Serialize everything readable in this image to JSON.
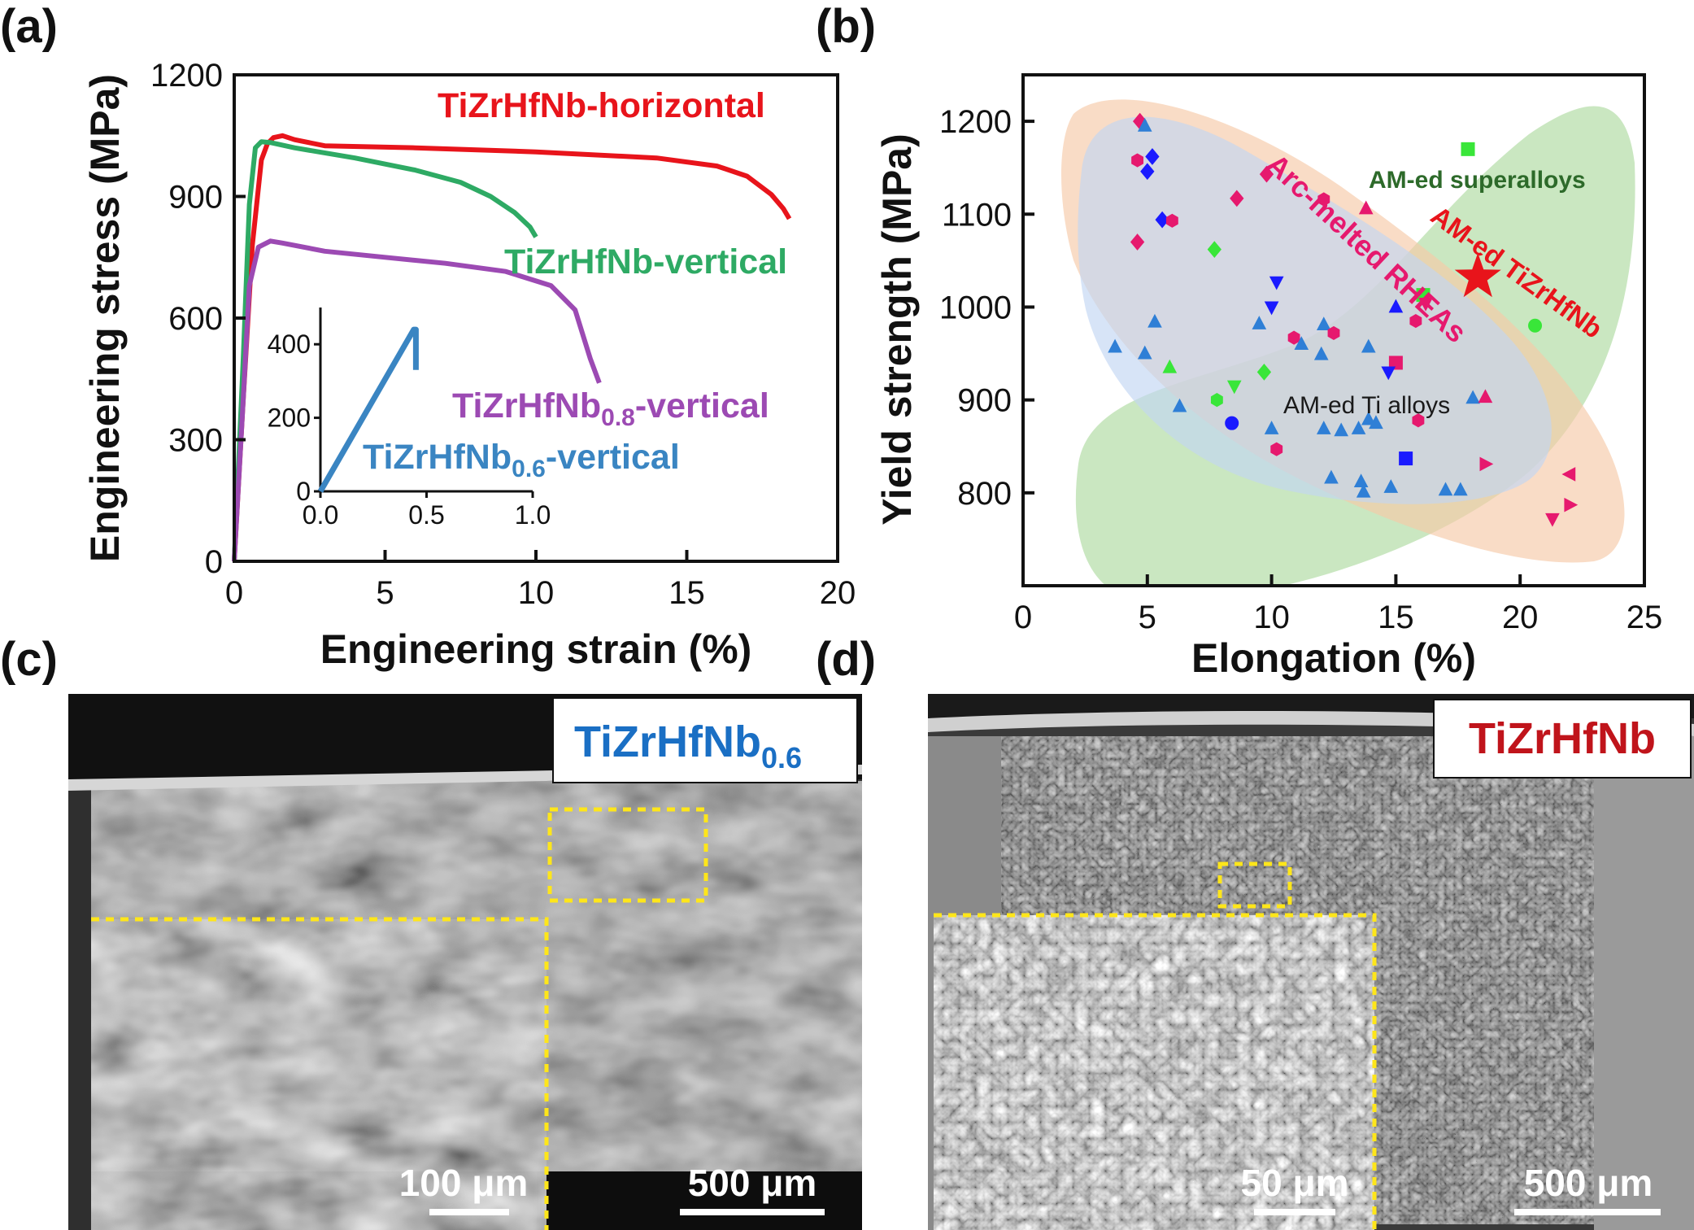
{
  "panels": {
    "a": {
      "label": "(a)"
    },
    "b": {
      "label": "(b)"
    },
    "c": {
      "label": "(c)"
    },
    "d": {
      "label": "(d)"
    }
  },
  "chart_data": [
    {
      "panel": "a",
      "type": "line",
      "xlabel": "Engineering strain (%)",
      "ylabel": "Engineering stress (MPa)",
      "xlim": [
        0,
        20
      ],
      "ylim": [
        0,
        1200
      ],
      "xticks": [
        0,
        5,
        10,
        15,
        20
      ],
      "yticks": [
        0,
        300,
        600,
        900,
        1200
      ],
      "grid": false,
      "series": [
        {
          "name": "TiZrHfNb-horizontal",
          "color": "#e8141b",
          "x": [
            0,
            0.3,
            0.6,
            0.9,
            1.1,
            1.3,
            1.6,
            2.0,
            3.0,
            6.0,
            10.0,
            14.0,
            16.0,
            17.0,
            17.8,
            18.2,
            18.4
          ],
          "y": [
            0,
            400,
            780,
            990,
            1030,
            1045,
            1050,
            1040,
            1025,
            1020,
            1010,
            995,
            975,
            950,
            905,
            870,
            845
          ]
        },
        {
          "name": "TiZrHfNb-vertical",
          "color": "#2eaa64",
          "x": [
            0,
            0.3,
            0.5,
            0.7,
            0.9,
            1.2,
            2.0,
            4.0,
            6.0,
            7.5,
            8.5,
            9.3,
            9.8,
            10.0
          ],
          "y": [
            0,
            500,
            880,
            1020,
            1035,
            1033,
            1020,
            995,
            965,
            935,
            900,
            860,
            825,
            800
          ]
        },
        {
          "name": "TiZrHfNb0.8-vertical",
          "color": "#9c4ab3",
          "x": [
            0,
            0.3,
            0.5,
            0.8,
            1.2,
            1.6,
            3.0,
            5.0,
            7.0,
            9.0,
            10.5,
            11.3,
            11.8,
            12.1
          ],
          "y": [
            0,
            400,
            680,
            775,
            790,
            785,
            765,
            750,
            735,
            715,
            680,
            620,
            500,
            440
          ]
        }
      ],
      "annotations": [
        {
          "text": "TiZrHfNb-horizontal",
          "color": "#e8141b"
        },
        {
          "text": "TiZrHfNb-vertical",
          "color": "#2eaa64"
        },
        {
          "base": "TiZrHfNb",
          "sub": "0.8",
          "suffix": "-vertical",
          "color": "#9c4ab3"
        },
        {
          "base": "TiZrHfNb",
          "sub": "0.6",
          "suffix": "-vertical",
          "color": "#3a85c2"
        }
      ],
      "inset": {
        "xlim": [
          0,
          1.0
        ],
        "ylim": [
          0,
          500
        ],
        "xticks": [
          "0.0",
          "0.5",
          "1.0"
        ],
        "yticks": [
          "0",
          "200",
          "400"
        ],
        "series": [
          {
            "name": "TiZrHfNb0.6-vertical",
            "color": "#3a85c2",
            "x": [
              0,
              0.44,
              0.45,
              0.45
            ],
            "y": [
              0,
              440,
              440,
              330
            ]
          }
        ]
      }
    },
    {
      "panel": "b",
      "type": "scatter",
      "xlabel": "Elongation (%)",
      "ylabel": "Yield strength (MPa)",
      "xlim": [
        0,
        25
      ],
      "ylim": [
        700,
        1250
      ],
      "xticks": [
        0,
        5,
        10,
        15,
        20,
        25
      ],
      "yticks": [
        800,
        900,
        1000,
        1100,
        1200
      ],
      "grid": false,
      "region_labels": [
        {
          "text": "AM-ed superalloys",
          "color": "#2d6a2a"
        },
        {
          "text": "Arc-melted RHEAs",
          "color": "#e6196e"
        },
        {
          "text": "AM-ed TiZrHfNb",
          "color": "#e8141b"
        },
        {
          "text": "AM-ed Ti alloys",
          "color": "#1a1a1a"
        }
      ],
      "regions": [
        {
          "name": "AM-ed superalloys",
          "color": "#9fd38e"
        },
        {
          "name": "Arc-melted RHEAs",
          "color": "#f6c9a8"
        },
        {
          "name": "AM-ed Ti alloys",
          "color": "#c2d6f2"
        }
      ],
      "highlight": {
        "name": "AM-ed TiZrHfNb",
        "x": 18.3,
        "y": 1032,
        "color": "#e8141b",
        "marker": "star"
      },
      "points": [
        {
          "x": 4.7,
          "y": 1200,
          "c": "#e6196e",
          "m": "diamond"
        },
        {
          "x": 4.9,
          "y": 1195,
          "c": "#2f7fd6",
          "m": "triangle"
        },
        {
          "x": 4.6,
          "y": 1158,
          "c": "#e6196e",
          "m": "hexagon"
        },
        {
          "x": 5.2,
          "y": 1162,
          "c": "#1a1aff",
          "m": "diamond"
        },
        {
          "x": 5.0,
          "y": 1146,
          "c": "#1a1aff",
          "m": "diamond"
        },
        {
          "x": 5.6,
          "y": 1094,
          "c": "#1a1aff",
          "m": "diamond"
        },
        {
          "x": 6.0,
          "y": 1093,
          "c": "#e6196e",
          "m": "hexagon"
        },
        {
          "x": 4.6,
          "y": 1070,
          "c": "#e6196e",
          "m": "diamond"
        },
        {
          "x": 7.7,
          "y": 1062,
          "c": "#39e639",
          "m": "diamond"
        },
        {
          "x": 8.6,
          "y": 1117,
          "c": "#e6196e",
          "m": "diamond"
        },
        {
          "x": 9.8,
          "y": 1143,
          "c": "#e6196e",
          "m": "diamond"
        },
        {
          "x": 12.1,
          "y": 1116,
          "c": "#e6196e",
          "m": "hexagon"
        },
        {
          "x": 13.8,
          "y": 1106,
          "c": "#e6196e",
          "m": "triangle"
        },
        {
          "x": 17.9,
          "y": 1170,
          "c": "#39e639",
          "m": "square"
        },
        {
          "x": 16.1,
          "y": 1013,
          "c": "#39e639",
          "m": "square"
        },
        {
          "x": 16.2,
          "y": 1004,
          "c": "#e6196e",
          "m": "triangle-down"
        },
        {
          "x": 20.6,
          "y": 980,
          "c": "#39e639",
          "m": "circle"
        },
        {
          "x": 10.2,
          "y": 1027,
          "c": "#1a1aff",
          "m": "triangle-down"
        },
        {
          "x": 10.0,
          "y": 1000,
          "c": "#1a1aff",
          "m": "triangle-down"
        },
        {
          "x": 15.0,
          "y": 1000,
          "c": "#1a1aff",
          "m": "triangle"
        },
        {
          "x": 15.8,
          "y": 985,
          "c": "#e6196e",
          "m": "hexagon"
        },
        {
          "x": 5.3,
          "y": 984,
          "c": "#2f7fd6",
          "m": "triangle"
        },
        {
          "x": 9.5,
          "y": 982,
          "c": "#2f7fd6",
          "m": "triangle"
        },
        {
          "x": 12.1,
          "y": 981,
          "c": "#2f7fd6",
          "m": "triangle"
        },
        {
          "x": 12.5,
          "y": 972,
          "c": "#e6196e",
          "m": "hexagon"
        },
        {
          "x": 10.9,
          "y": 967,
          "c": "#e6196e",
          "m": "hexagon"
        },
        {
          "x": 3.7,
          "y": 957,
          "c": "#2f7fd6",
          "m": "triangle"
        },
        {
          "x": 11.2,
          "y": 960,
          "c": "#2f7fd6",
          "m": "triangle"
        },
        {
          "x": 13.9,
          "y": 957,
          "c": "#2f7fd6",
          "m": "triangle"
        },
        {
          "x": 4.9,
          "y": 950,
          "c": "#2f7fd6",
          "m": "triangle"
        },
        {
          "x": 12.0,
          "y": 949,
          "c": "#2f7fd6",
          "m": "triangle"
        },
        {
          "x": 15.0,
          "y": 940,
          "c": "#e6196e",
          "m": "square"
        },
        {
          "x": 5.9,
          "y": 935,
          "c": "#39e639",
          "m": "triangle"
        },
        {
          "x": 9.7,
          "y": 930,
          "c": "#39e639",
          "m": "diamond"
        },
        {
          "x": 14.7,
          "y": 930,
          "c": "#1a1aff",
          "m": "triangle-down"
        },
        {
          "x": 8.5,
          "y": 915,
          "c": "#39e639",
          "m": "triangle-down"
        },
        {
          "x": 7.8,
          "y": 900,
          "c": "#39e639",
          "m": "hexagon"
        },
        {
          "x": 6.3,
          "y": 893,
          "c": "#2f7fd6",
          "m": "triangle"
        },
        {
          "x": 18.1,
          "y": 902,
          "c": "#2f7fd6",
          "m": "triangle"
        },
        {
          "x": 18.6,
          "y": 903,
          "c": "#e6196e",
          "m": "triangle"
        },
        {
          "x": 15.9,
          "y": 878,
          "c": "#e6196e",
          "m": "hexagon"
        },
        {
          "x": 8.4,
          "y": 875,
          "c": "#1a1aff",
          "m": "circle"
        },
        {
          "x": 10.0,
          "y": 869,
          "c": "#2f7fd6",
          "m": "triangle"
        },
        {
          "x": 12.1,
          "y": 869,
          "c": "#2f7fd6",
          "m": "triangle"
        },
        {
          "x": 12.8,
          "y": 867,
          "c": "#2f7fd6",
          "m": "triangle"
        },
        {
          "x": 13.5,
          "y": 869,
          "c": "#2f7fd6",
          "m": "triangle"
        },
        {
          "x": 13.9,
          "y": 879,
          "c": "#2f7fd6",
          "m": "triangle"
        },
        {
          "x": 14.2,
          "y": 875,
          "c": "#2f7fd6",
          "m": "triangle"
        },
        {
          "x": 10.2,
          "y": 847,
          "c": "#e6196e",
          "m": "hexagon"
        },
        {
          "x": 15.4,
          "y": 837,
          "c": "#1a1aff",
          "m": "square"
        },
        {
          "x": 18.6,
          "y": 831,
          "c": "#e6196e",
          "m": "triangle-right"
        },
        {
          "x": 12.4,
          "y": 816,
          "c": "#2f7fd6",
          "m": "triangle"
        },
        {
          "x": 13.6,
          "y": 812,
          "c": "#2f7fd6",
          "m": "triangle"
        },
        {
          "x": 14.8,
          "y": 806,
          "c": "#2f7fd6",
          "m": "triangle"
        },
        {
          "x": 13.7,
          "y": 801,
          "c": "#2f7fd6",
          "m": "triangle"
        },
        {
          "x": 17.0,
          "y": 803,
          "c": "#2f7fd6",
          "m": "triangle"
        },
        {
          "x": 17.6,
          "y": 803,
          "c": "#2f7fd6",
          "m": "triangle"
        },
        {
          "x": 22.0,
          "y": 820,
          "c": "#e6196e",
          "m": "triangle-left"
        },
        {
          "x": 22.0,
          "y": 787,
          "c": "#e6196e",
          "m": "triangle-right"
        },
        {
          "x": 21.3,
          "y": 772,
          "c": "#e6196e",
          "m": "triangle-down"
        }
      ]
    }
  ],
  "micrographs": {
    "c": {
      "label_base": "TiZrHfNb",
      "label_sub": "0.6",
      "label_color": "#1a6fc4",
      "inset_scale": "100 μm",
      "main_scale": "500 μm"
    },
    "d": {
      "label": "TiZrHfNb",
      "label_color": "#c0141b",
      "inset_scale": "50 μm",
      "main_scale": "500 μm"
    }
  }
}
